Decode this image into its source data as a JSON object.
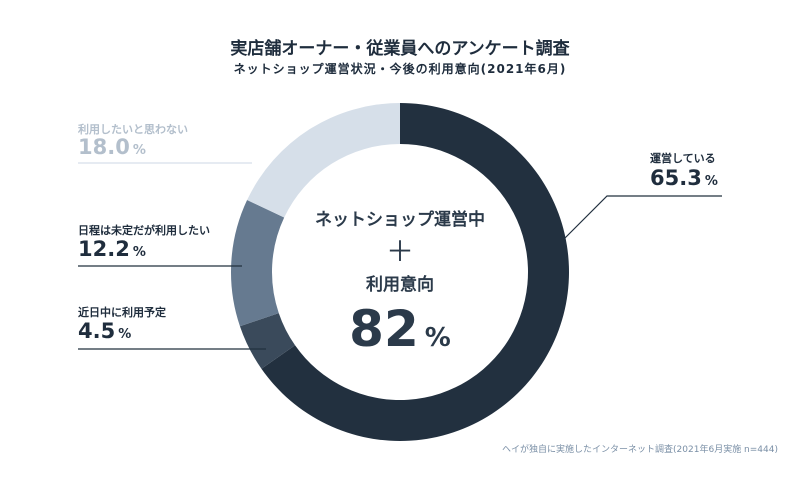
{
  "chart_data": {
    "type": "pie",
    "title": "実店舗オーナー・従業員へのアンケート調査",
    "subtitle": "ネットショップ運営状況・今後の利用意向(2021年6月)",
    "donut": true,
    "slices": [
      {
        "label": "運営している",
        "value": 65.3,
        "color": "#22303f"
      },
      {
        "label": "近日中に利用予定",
        "value": 4.5,
        "color": "#3a4a5b"
      },
      {
        "label": "日程は未定だが利用したい",
        "value": 12.2,
        "color": "#667a90"
      },
      {
        "label": "利用したいと思わない",
        "value": 18.0,
        "color": "#d6dfe9"
      }
    ],
    "unit": "%",
    "center": {
      "line1": "ネットショップ運営中",
      "plus": "＋",
      "line2": "利用意向",
      "value": "82",
      "unit": "%"
    },
    "footnote": "ヘイが独自に実施したインターネット調査(2021年6月実施 n=444)"
  }
}
